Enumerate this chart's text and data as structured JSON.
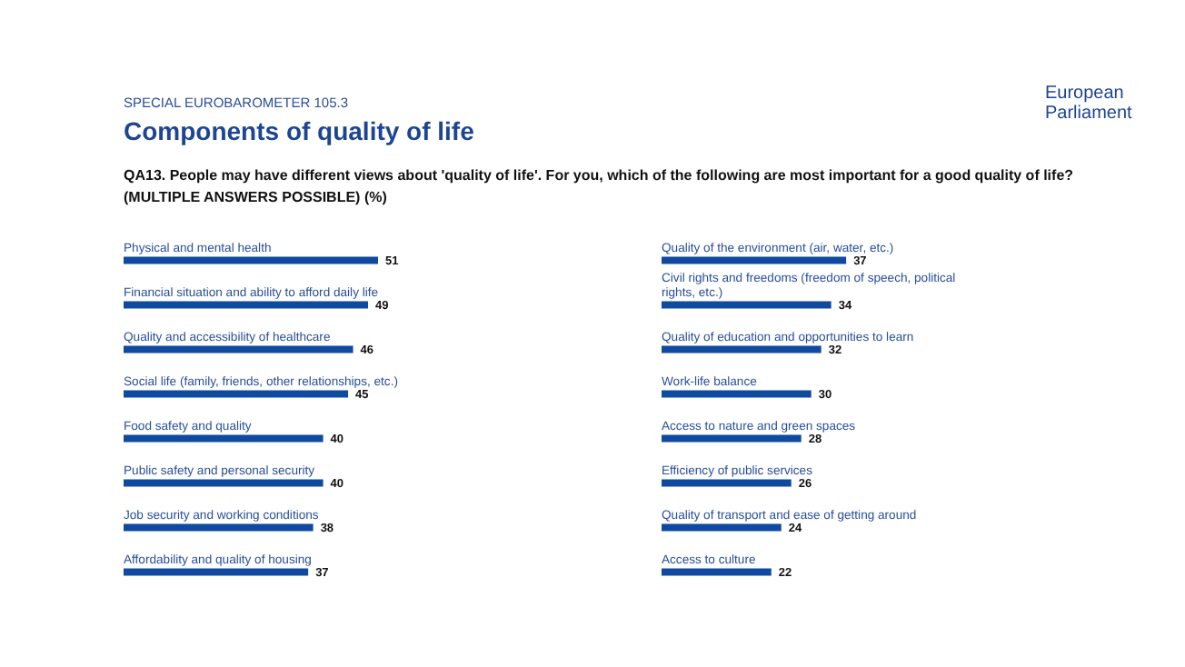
{
  "chart_data": [
    {
      "type": "bar",
      "orientation": "horizontal",
      "title": "Components of quality of life",
      "subtitle": "QA13. People may have different views about 'quality of life'. For you, which of the following are most important for a good quality of life? (MULTIPLE ANSWERS POSSIBLE) (%)",
      "annotations": [
        "SPECIAL EUROBAROMETER 105.3",
        "European Parliament"
      ],
      "categories": [
        "Physical and mental health",
        "Financial situation and ability to afford daily life",
        "Quality and accessibility of healthcare",
        "Social life (family, friends, other relationships, etc.)",
        "Food safety and quality",
        "Public safety and personal security",
        "Job security and working conditions",
        "Affordability and quality of housing"
      ],
      "values": [
        51,
        49,
        46,
        45,
        40,
        40,
        38,
        37
      ],
      "color": "#0f4aa0",
      "data_labels": true
    },
    {
      "type": "bar",
      "orientation": "horizontal",
      "categories": [
        "Quality of the environment (air, water, etc.)",
        "Civil rights and freedoms (freedom of speech, political rights, etc.)",
        "Quality of education and opportunities to learn",
        "Work-life balance",
        "Access to nature and green spaces",
        "Efficiency of public services",
        "Quality of transport and ease of getting around",
        "Access to culture"
      ],
      "values": [
        37,
        34,
        32,
        30,
        28,
        26,
        24,
        22
      ],
      "color": "#0f4aa0",
      "data_labels": true
    }
  ]
}
